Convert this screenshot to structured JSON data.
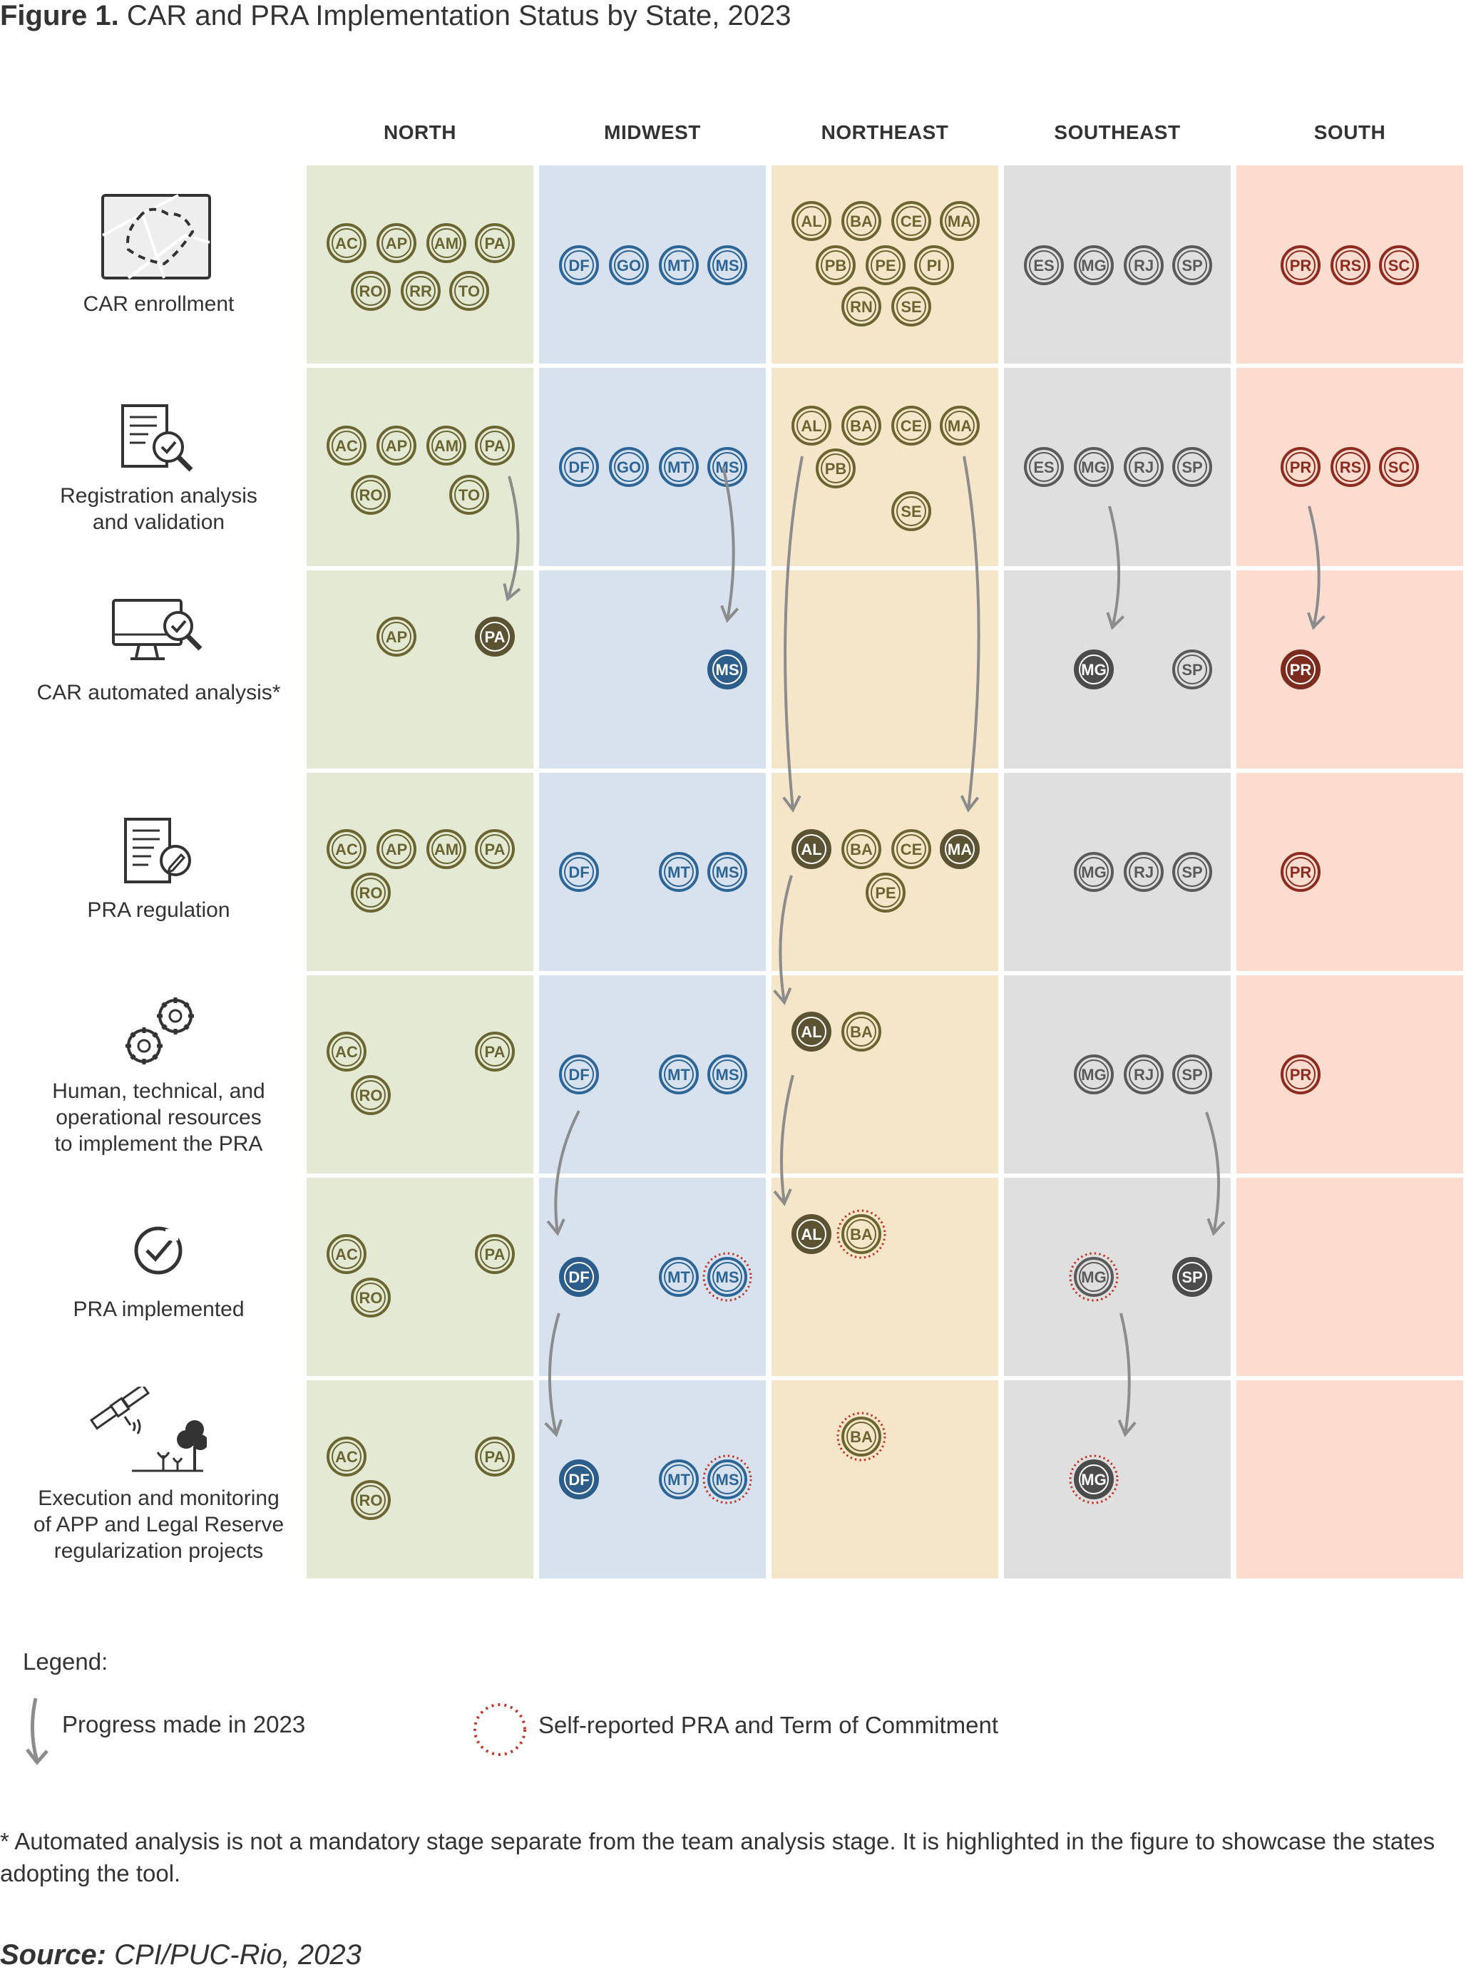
{
  "figure_label": "Figure 1.",
  "figure_title": "CAR and PRA Implementation Status by State, 2023",
  "regions": [
    {
      "name": "NORTH",
      "bg": "#e4e9d3",
      "color": "#6b6631",
      "fill": "#5c5333"
    },
    {
      "name": "MIDWEST",
      "bg": "#d7e2ee",
      "color": "#2d6596",
      "fill": "#2c5d8b"
    },
    {
      "name": "NORTHEAST",
      "bg": "#f5e6c9",
      "color": "#6b6631",
      "fill": "#5c5333"
    },
    {
      "name": "SOUTHEAST",
      "bg": "#e0dfdf",
      "color": "#5a5a5a",
      "fill": "#4c4c4c"
    },
    {
      "name": "SOUTH",
      "bg": "#fbdccf",
      "color": "#8e2b20",
      "fill": "#7d2a1f"
    }
  ],
  "stages": [
    {
      "label": "CAR enrollment",
      "icon": "map-boundary-icon"
    },
    {
      "label": "Registration analysis\nand validation",
      "icon": "document-magnifier-icon"
    },
    {
      "label": "CAR automated analysis*",
      "icon": "monitor-check-icon"
    },
    {
      "label": "PRA regulation",
      "icon": "document-pen-icon"
    },
    {
      "label": "Human, technical, and\noperational resources\nto implement the PRA",
      "icon": "gears-icon"
    },
    {
      "label": "PRA implemented",
      "icon": "check-circle-icon"
    },
    {
      "label": "Execution and monitoring\nof APP and Legal Reserve\nregularization projects",
      "icon": "satellite-plants-icon"
    }
  ],
  "states": [
    [
      {
        "region": 0,
        "list": [
          [
            "AC",
            0,
            0
          ],
          [
            "AP",
            0,
            0
          ],
          [
            "AM",
            0,
            0
          ],
          [
            "PA",
            0,
            0
          ],
          [
            "RO",
            0,
            0
          ],
          [
            "RR",
            0,
            0
          ],
          [
            "TO",
            0,
            0
          ]
        ]
      },
      {
        "region": 1,
        "list": [
          [
            "DF",
            0,
            0
          ],
          [
            "GO",
            0,
            0
          ],
          [
            "MT",
            0,
            0
          ],
          [
            "MS",
            0,
            0
          ]
        ]
      },
      {
        "region": 2,
        "list": [
          [
            "AL",
            0,
            0
          ],
          [
            "BA",
            0,
            0
          ],
          [
            "CE",
            0,
            0
          ],
          [
            "MA",
            0,
            0
          ],
          [
            "PB",
            0,
            0
          ],
          [
            "PE",
            0,
            0
          ],
          [
            "PI",
            0,
            0
          ],
          [
            "RN",
            0,
            0
          ],
          [
            "SE",
            0,
            0
          ]
        ]
      },
      {
        "region": 3,
        "list": [
          [
            "ES",
            0,
            0
          ],
          [
            "MG",
            0,
            0
          ],
          [
            "RJ",
            0,
            0
          ],
          [
            "SP",
            0,
            0
          ]
        ]
      },
      {
        "region": 4,
        "list": [
          [
            "PR",
            0,
            0
          ],
          [
            "RS",
            0,
            0
          ],
          [
            "SC",
            0,
            0
          ]
        ]
      }
    ],
    [
      {
        "region": 0,
        "list": [
          [
            "AC",
            0,
            0
          ],
          [
            "AP",
            0,
            0
          ],
          [
            "AM",
            0,
            0
          ],
          [
            "PA",
            0,
            0
          ],
          [
            "RO",
            0,
            0
          ],
          [
            "TO",
            0,
            0
          ]
        ]
      },
      {
        "region": 1,
        "list": [
          [
            "DF",
            0,
            0
          ],
          [
            "GO",
            0,
            0
          ],
          [
            "MT",
            0,
            0
          ],
          [
            "MS",
            0,
            0
          ]
        ]
      },
      {
        "region": 2,
        "list": [
          [
            "AL",
            0,
            0
          ],
          [
            "BA",
            0,
            0
          ],
          [
            "CE",
            0,
            0
          ],
          [
            "MA",
            0,
            0
          ],
          [
            "PB",
            0,
            0
          ],
          [
            "SE",
            0,
            0
          ]
        ]
      },
      {
        "region": 3,
        "list": [
          [
            "ES",
            0,
            0
          ],
          [
            "MG",
            0,
            0
          ],
          [
            "RJ",
            0,
            0
          ],
          [
            "SP",
            0,
            0
          ]
        ]
      },
      {
        "region": 4,
        "list": [
          [
            "PR",
            0,
            0
          ],
          [
            "RS",
            0,
            0
          ],
          [
            "SC",
            0,
            0
          ]
        ]
      }
    ],
    [
      {
        "region": 0,
        "list": [
          [
            "AP",
            0,
            0
          ],
          [
            "PA",
            1,
            0
          ]
        ]
      },
      {
        "region": 1,
        "list": [
          [
            "MS",
            1,
            0
          ]
        ]
      },
      {
        "region": 2,
        "list": []
      },
      {
        "region": 3,
        "list": [
          [
            "MG",
            1,
            0
          ],
          [
            "SP",
            0,
            0
          ]
        ]
      },
      {
        "region": 4,
        "list": [
          [
            "PR",
            1,
            0
          ]
        ]
      }
    ],
    [
      {
        "region": 0,
        "list": [
          [
            "AC",
            0,
            0
          ],
          [
            "AP",
            0,
            0
          ],
          [
            "AM",
            0,
            0
          ],
          [
            "PA",
            0,
            0
          ],
          [
            "RO",
            0,
            0
          ]
        ]
      },
      {
        "region": 1,
        "list": [
          [
            "DF",
            0,
            0
          ],
          [
            "MT",
            0,
            0
          ],
          [
            "MS",
            0,
            0
          ]
        ]
      },
      {
        "region": 2,
        "list": [
          [
            "AL",
            1,
            0
          ],
          [
            "BA",
            0,
            0
          ],
          [
            "CE",
            0,
            0
          ],
          [
            "MA",
            1,
            0
          ],
          [
            "PE",
            0,
            0
          ]
        ]
      },
      {
        "region": 3,
        "list": [
          [
            "MG",
            0,
            0
          ],
          [
            "RJ",
            0,
            0
          ],
          [
            "SP",
            0,
            0
          ]
        ]
      },
      {
        "region": 4,
        "list": [
          [
            "PR",
            0,
            0
          ]
        ]
      }
    ],
    [
      {
        "region": 0,
        "list": [
          [
            "AC",
            0,
            0
          ],
          [
            "PA",
            0,
            0
          ],
          [
            "RO",
            0,
            0
          ]
        ]
      },
      {
        "region": 1,
        "list": [
          [
            "DF",
            0,
            0
          ],
          [
            "MT",
            0,
            0
          ],
          [
            "MS",
            0,
            0
          ]
        ]
      },
      {
        "region": 2,
        "list": [
          [
            "AL",
            1,
            0
          ],
          [
            "BA",
            0,
            0
          ]
        ]
      },
      {
        "region": 3,
        "list": [
          [
            "MG",
            0,
            0
          ],
          [
            "RJ",
            0,
            0
          ],
          [
            "SP",
            0,
            0
          ]
        ]
      },
      {
        "region": 4,
        "list": [
          [
            "PR",
            0,
            0
          ]
        ]
      }
    ],
    [
      {
        "region": 0,
        "list": [
          [
            "AC",
            0,
            0
          ],
          [
            "PA",
            0,
            0
          ],
          [
            "RO",
            0,
            0
          ]
        ]
      },
      {
        "region": 1,
        "list": [
          [
            "DF",
            1,
            0
          ],
          [
            "MT",
            0,
            0
          ],
          [
            "MS",
            0,
            1
          ]
        ]
      },
      {
        "region": 2,
        "list": [
          [
            "AL",
            1,
            0
          ],
          [
            "BA",
            0,
            1
          ]
        ]
      },
      {
        "region": 3,
        "list": [
          [
            "MG",
            0,
            1
          ],
          [
            "SP",
            1,
            0
          ]
        ]
      },
      {
        "region": 4,
        "list": []
      }
    ],
    [
      {
        "region": 0,
        "list": [
          [
            "AC",
            0,
            0
          ],
          [
            "PA",
            0,
            0
          ],
          [
            "RO",
            0,
            0
          ]
        ]
      },
      {
        "region": 1,
        "list": [
          [
            "DF",
            1,
            0
          ],
          [
            "MT",
            0,
            0
          ],
          [
            "MS",
            0,
            1
          ]
        ]
      },
      {
        "region": 2,
        "list": [
          [
            "BA",
            0,
            1
          ]
        ]
      },
      {
        "region": 3,
        "list": [
          [
            "MG",
            1,
            1
          ]
        ]
      },
      {
        "region": 4,
        "list": []
      }
    ]
  ],
  "legend": {
    "title": "Legend:",
    "progress": "Progress made in 2023",
    "self_reported": "Self-reported PRA and Term of Commitment"
  },
  "footnote": "* Automated analysis is not a mandatory stage separate from the team analysis stage. It is highlighted in the figure to showcase the states adopting the tool.",
  "source_label": "Source:",
  "source_text": "CPI/PUC-Rio, 2023"
}
